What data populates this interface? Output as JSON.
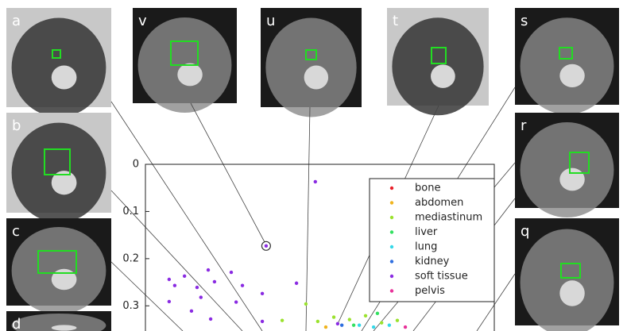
{
  "chart_data": {
    "type": "scatter",
    "ylim": [
      0,
      0.35
    ],
    "yticks": [
      0,
      0.1,
      0.2,
      0.3
    ],
    "xlim": [
      0,
      1
    ],
    "y_inverted": true,
    "legend": "top-right",
    "series": [
      {
        "name": "bone",
        "color": "#e8202a",
        "x": [
          0.651,
          0.656
        ],
        "values": [
          0.103,
          0.119
        ]
      },
      {
        "name": "abdomen",
        "color": "#f0b41e",
        "x": [
          0.517
        ],
        "values": [
          0.345
        ]
      },
      {
        "name": "mediastinum",
        "color": "#9be22e",
        "x": [
          0.46,
          0.494,
          0.54,
          0.585,
          0.631,
          0.677,
          0.722,
          0.392
        ],
        "values": [
          0.296,
          0.333,
          0.324,
          0.329,
          0.321,
          0.336,
          0.331,
          0.331
        ]
      },
      {
        "name": "liver",
        "color": "#32e060",
        "x": [
          0.665,
          0.597
        ],
        "values": [
          0.316,
          0.341
        ]
      },
      {
        "name": "lung",
        "color": "#35d8e8",
        "x": [
          0.613,
          0.654,
          0.699
        ],
        "values": [
          0.341,
          0.345,
          0.341
        ]
      },
      {
        "name": "kidney",
        "color": "#2f6fe0",
        "x": [
          0.563
        ],
        "values": [
          0.341
        ]
      },
      {
        "name": "soft tissue",
        "color": "#8a2be2",
        "x": [
          0.487,
          0.346,
          0.068,
          0.112,
          0.084,
          0.18,
          0.198,
          0.148,
          0.068,
          0.159,
          0.246,
          0.278,
          0.335,
          0.26,
          0.433,
          0.132,
          0.187,
          0.335,
          0.551
        ],
        "values": [
          0.037,
          0.173,
          0.244,
          0.237,
          0.257,
          0.224,
          0.249,
          0.261,
          0.291,
          0.282,
          0.229,
          0.257,
          0.274,
          0.292,
          0.252,
          0.311,
          0.328,
          0.333,
          0.338
        ]
      },
      {
        "name": "pelvis",
        "color": "#e8339a",
        "x": [
          0.745
        ],
        "values": [
          0.345
        ]
      }
    ]
  },
  "panels": [
    {
      "label": "a"
    },
    {
      "label": "b"
    },
    {
      "label": "c"
    },
    {
      "label": "d"
    },
    {
      "label": "v"
    },
    {
      "label": "u"
    },
    {
      "label": "t"
    },
    {
      "label": "s"
    },
    {
      "label": "r"
    },
    {
      "label": "q"
    }
  ]
}
